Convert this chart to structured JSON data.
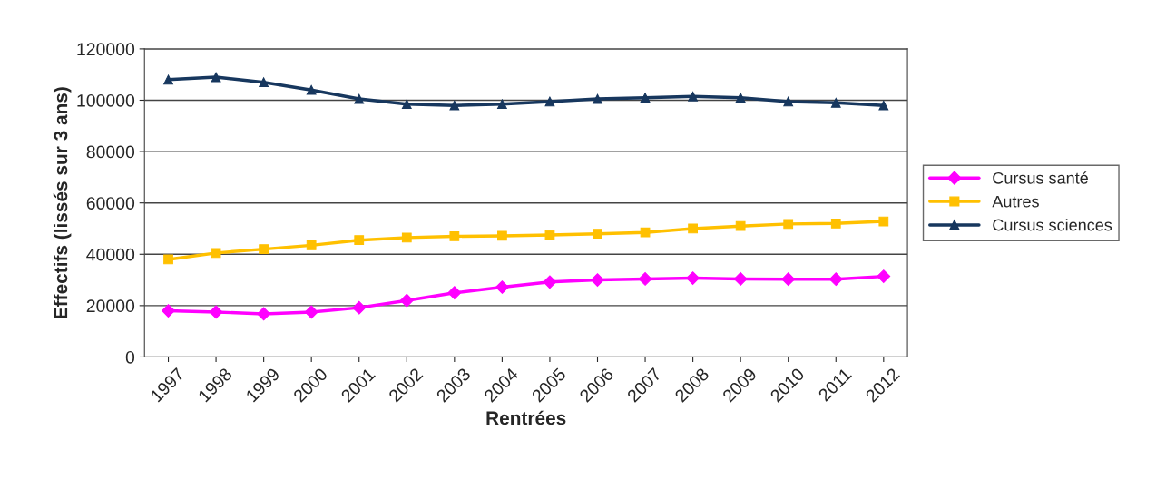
{
  "chart_data": {
    "type": "line",
    "xlabel": "Rentrées",
    "ylabel": "Effectifs (lissés sur 3 ans)",
    "categories": [
      "1997",
      "1998",
      "1999",
      "2000",
      "2001",
      "2002",
      "2003",
      "2004",
      "2005",
      "2006",
      "2007",
      "2008",
      "2009",
      "2010",
      "2011",
      "2012"
    ],
    "series": [
      {
        "name": "Cursus santé",
        "color": "#ff00ff",
        "marker": "diamond",
        "values": [
          18000,
          17500,
          16800,
          17500,
          19200,
          22000,
          25000,
          27200,
          29200,
          30000,
          30400,
          30700,
          30400,
          30300,
          30300,
          31400
        ]
      },
      {
        "name": "Autres",
        "color": "#ffc000",
        "marker": "square",
        "values": [
          38000,
          40500,
          42000,
          43500,
          45500,
          46500,
          47000,
          47200,
          47500,
          48000,
          48500,
          50000,
          51000,
          51800,
          52000,
          52800
        ]
      },
      {
        "name": "Cursus sciences",
        "color": "#17375e",
        "marker": "triangle",
        "values": [
          108000,
          109000,
          107000,
          104000,
          100500,
          98500,
          98000,
          98500,
          99500,
          100500,
          101000,
          101500,
          101000,
          99500,
          99000,
          98000
        ]
      }
    ],
    "ylim": [
      0,
      120000
    ],
    "yticks": [
      0,
      20000,
      40000,
      60000,
      80000,
      100000,
      120000
    ],
    "grid": "y",
    "legend": "right",
    "line_style": "solid"
  }
}
